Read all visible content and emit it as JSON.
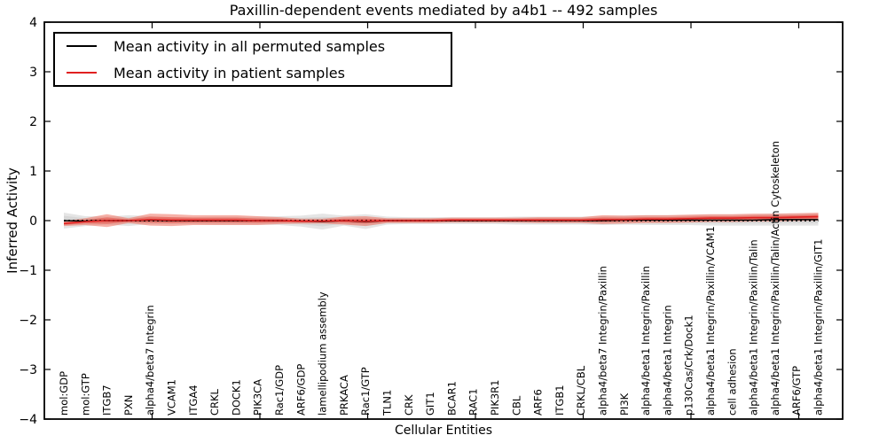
{
  "chart_data": {
    "type": "line",
    "title": "Paxillin-dependent events mediated by a4b1 -- 492 samples",
    "xlabel": "Cellular Entities",
    "ylabel": "Inferred Activity",
    "ylim": [
      -4,
      4
    ],
    "yticks": [
      -4,
      -3,
      -2,
      -1,
      0,
      1,
      2,
      3,
      4
    ],
    "grid": false,
    "legend_position": "upper left",
    "zero_line": true,
    "colors": {
      "permuted_line": "#000000",
      "patient_line": "#e02020",
      "permuted_band": "#aaaaaa",
      "patient_band_outer": "#ee7160",
      "patient_band_inner": "#e8453c",
      "frame": "#000000"
    },
    "categories": [
      "mol:GDP",
      "mol:GTP",
      "ITGB7",
      "PXN",
      "alpha4/beta7 Integrin",
      "VCAM1",
      "ITGA4",
      "CRKL",
      "DOCK1",
      "PIK3CA",
      "Rac1/GDP",
      "ARF6/GDP",
      "lamellipodium assembly",
      "PRKACA",
      "Rac1/GTP",
      "TLN1",
      "CRK",
      "GIT1",
      "BCAR1",
      "RAC1",
      "PIK3R1",
      "CBL",
      "ARF6",
      "ITGB1",
      "CRKL/CBL",
      "alpha4/beta7 Integrin/Paxillin",
      "PI3K",
      "alpha4/beta1 Integrin/Paxillin",
      "alpha4/beta1 Integrin",
      "p130Cas/Crk/Dock1",
      "alpha4/beta1 Integrin/Paxillin/VCAM1",
      "cell adhesion",
      "alpha4/beta1 Integrin/Paxillin/Talin",
      "alpha4/beta1 Integrin/Paxillin/Talin/Actin Cytoskeleton",
      "ARF6/GTP",
      "alpha4/beta1 Integrin/Paxillin/GIT1"
    ],
    "series": [
      {
        "name": "Mean activity in all permuted samples",
        "color": "#000000",
        "values": [
          0.0,
          -0.01,
          0.0,
          0.0,
          0.01,
          0.0,
          0.0,
          0.0,
          0.0,
          0.0,
          0.0,
          -0.01,
          -0.02,
          0.0,
          -0.02,
          0.0,
          0.0,
          0.0,
          0.0,
          0.0,
          0.0,
          0.0,
          0.0,
          0.0,
          0.0,
          0.0,
          0.01,
          0.01,
          0.01,
          0.01,
          0.01,
          0.01,
          0.01,
          0.02,
          0.02,
          0.02
        ],
        "std": [
          0.16,
          0.1,
          0.08,
          0.11,
          0.08,
          0.07,
          0.07,
          0.08,
          0.08,
          0.08,
          0.09,
          0.11,
          0.16,
          0.1,
          0.15,
          0.08,
          0.07,
          0.07,
          0.07,
          0.07,
          0.07,
          0.08,
          0.08,
          0.08,
          0.08,
          0.09,
          0.09,
          0.1,
          0.1,
          0.1,
          0.11,
          0.11,
          0.11,
          0.12,
          0.12,
          0.12
        ]
      },
      {
        "name": "Mean activity in patient samples",
        "color": "#e02020",
        "values": [
          -0.06,
          -0.02,
          0.0,
          0.0,
          0.02,
          0.01,
          0.01,
          0.01,
          0.01,
          0.0,
          0.0,
          -0.01,
          -0.01,
          0.0,
          -0.01,
          0.0,
          0.0,
          0.0,
          0.01,
          0.01,
          0.01,
          0.01,
          0.01,
          0.01,
          0.01,
          0.02,
          0.02,
          0.03,
          0.03,
          0.04,
          0.05,
          0.05,
          0.06,
          0.06,
          0.07,
          0.08
        ],
        "std": [
          0.05,
          0.07,
          0.13,
          0.05,
          0.12,
          0.12,
          0.1,
          0.1,
          0.1,
          0.09,
          0.07,
          0.05,
          0.05,
          0.08,
          0.1,
          0.05,
          0.05,
          0.05,
          0.05,
          0.05,
          0.05,
          0.05,
          0.06,
          0.06,
          0.06,
          0.09,
          0.08,
          0.08,
          0.08,
          0.08,
          0.08,
          0.08,
          0.08,
          0.08,
          0.08,
          0.08
        ]
      }
    ]
  }
}
